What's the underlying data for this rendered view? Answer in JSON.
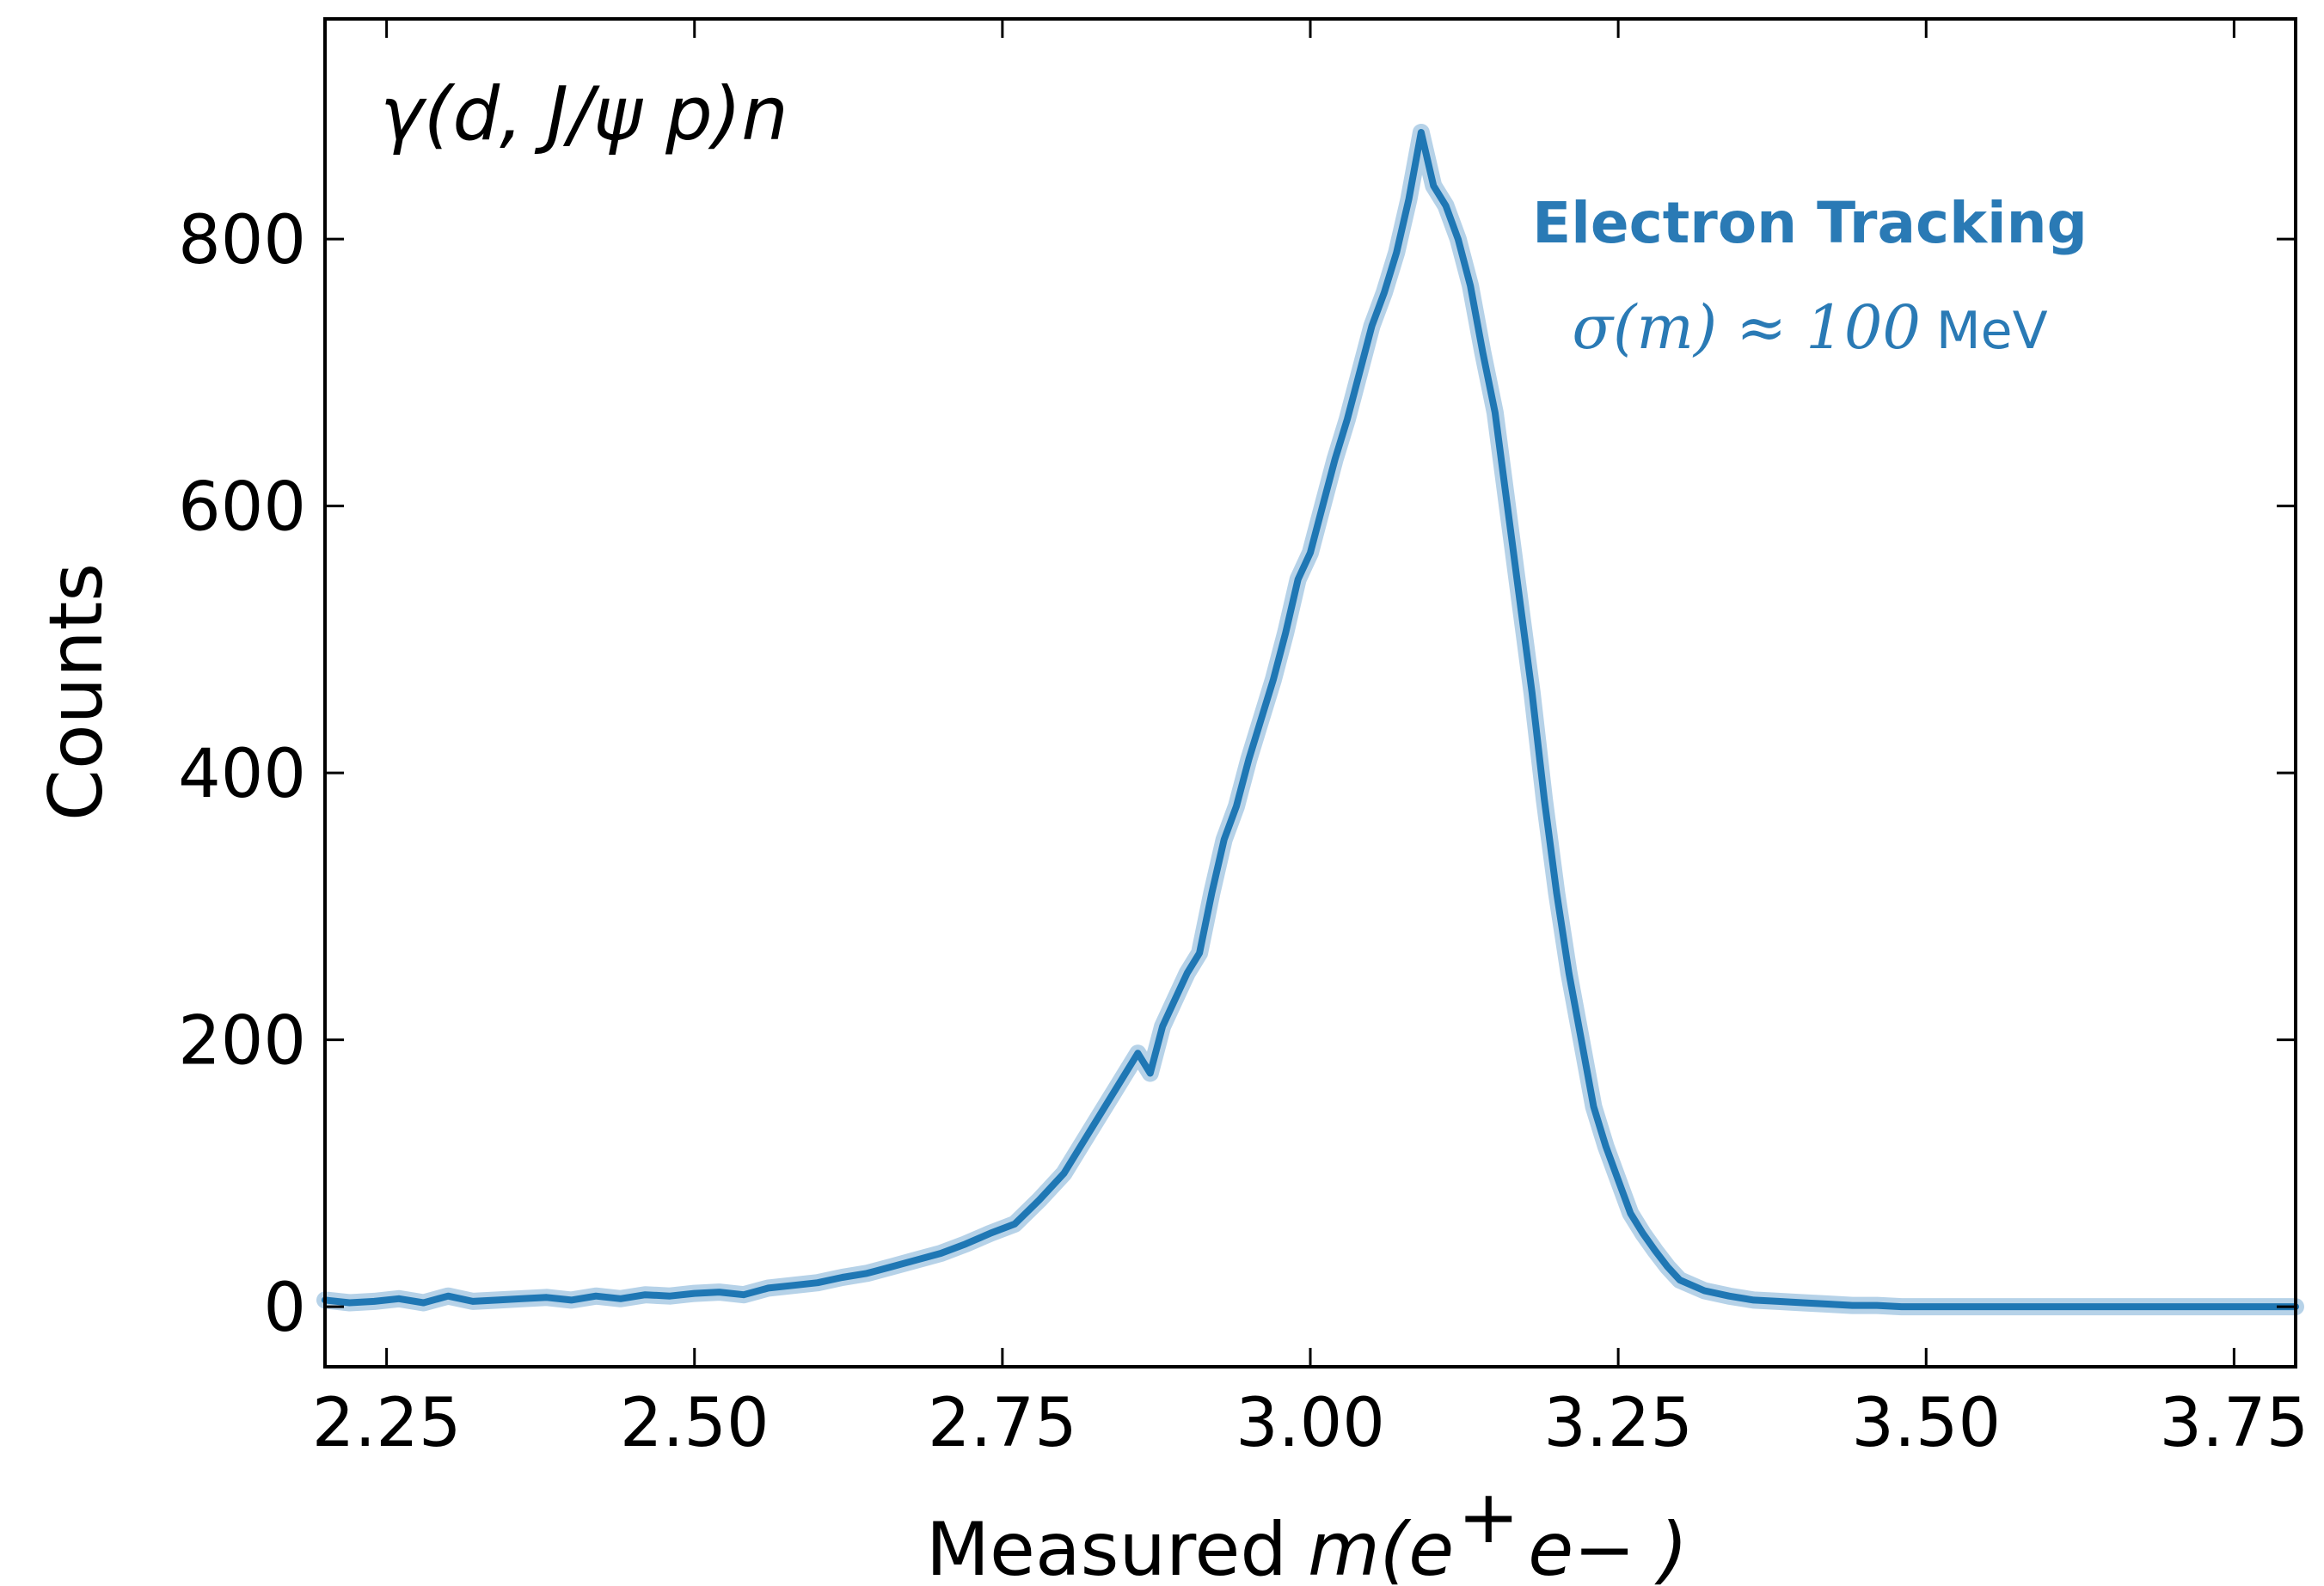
{
  "chart_data": {
    "type": "line",
    "title": "γ(d, J/ψ p)n",
    "xlabel": {
      "prefix": "Measured",
      "math": "m(e",
      "sup": "+",
      "rest": "e− )"
    },
    "ylabel": "Counts",
    "xlim": [
      2.2,
      3.8
    ],
    "ylim": [
      -45,
      965
    ],
    "xticks": [
      2.25,
      2.5,
      2.75,
      3.0,
      3.25,
      3.5,
      3.75
    ],
    "xtick_labels": [
      "2.25",
      "2.50",
      "2.75",
      "3.00",
      "3.25",
      "3.50",
      "3.75"
    ],
    "yticks": [
      0,
      200,
      400,
      600,
      800
    ],
    "ytick_labels": [
      "0",
      "200",
      "400",
      "600",
      "800"
    ],
    "annotation": {
      "line1": "Electron Tracking",
      "line2_math": "σ(m) ≈ 100",
      "line2_unit": "MeV"
    },
    "colors": {
      "line": "#1f77b4",
      "band": "#aecde6",
      "annotation": "#2a7ab5"
    },
    "series": [
      {
        "name": "Electron Tracking",
        "x": [
          2.2,
          2.22,
          2.24,
          2.26,
          2.28,
          2.3,
          2.32,
          2.34,
          2.36,
          2.38,
          2.4,
          2.42,
          2.44,
          2.46,
          2.48,
          2.5,
          2.52,
          2.54,
          2.56,
          2.58,
          2.6,
          2.62,
          2.64,
          2.66,
          2.68,
          2.7,
          2.72,
          2.74,
          2.76,
          2.78,
          2.8,
          2.82,
          2.84,
          2.86,
          2.87,
          2.88,
          2.89,
          2.9,
          2.91,
          2.92,
          2.93,
          2.94,
          2.95,
          2.96,
          2.97,
          2.98,
          2.99,
          3.0,
          3.01,
          3.02,
          3.03,
          3.04,
          3.05,
          3.06,
          3.07,
          3.08,
          3.09,
          3.1,
          3.11,
          3.12,
          3.13,
          3.14,
          3.15,
          3.16,
          3.17,
          3.18,
          3.19,
          3.2,
          3.21,
          3.22,
          3.23,
          3.24,
          3.25,
          3.26,
          3.27,
          3.28,
          3.29,
          3.3,
          3.32,
          3.34,
          3.36,
          3.38,
          3.4,
          3.42,
          3.44,
          3.46,
          3.48,
          3.5,
          3.55,
          3.6,
          3.65,
          3.7,
          3.75,
          3.8
        ],
        "y": [
          5,
          3,
          4,
          6,
          3,
          8,
          4,
          5,
          6,
          7,
          5,
          8,
          6,
          9,
          8,
          10,
          11,
          9,
          14,
          16,
          18,
          22,
          25,
          30,
          35,
          40,
          47,
          55,
          62,
          80,
          100,
          130,
          160,
          190,
          175,
          210,
          230,
          250,
          265,
          310,
          350,
          375,
          410,
          440,
          470,
          505,
          545,
          565,
          600,
          635,
          665,
          700,
          735,
          760,
          790,
          830,
          880,
          840,
          825,
          800,
          765,
          715,
          670,
          600,
          530,
          460,
          380,
          310,
          250,
          200,
          150,
          120,
          95,
          70,
          55,
          42,
          30,
          20,
          12,
          8,
          5,
          4,
          3,
          2,
          1,
          1,
          0,
          0,
          0,
          0,
          0,
          0,
          0,
          0
        ]
      }
    ]
  }
}
